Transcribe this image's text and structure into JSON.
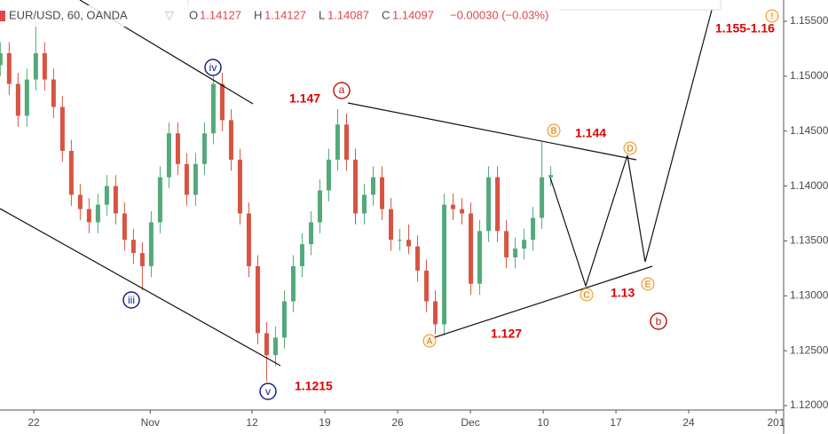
{
  "chart_data": {
    "type": "candlestick",
    "title": "EUR/USD, 60, OANDA",
    "header": {
      "o_label": "O",
      "o": "1.14127",
      "h_label": "H",
      "h": "1.14127",
      "l_label": "L",
      "l": "1.14087",
      "c_label": "C",
      "c": "1.14097",
      "change": "−0.00030 (−0.03%)"
    },
    "up_color": "#53a97a",
    "down_color": "#d75442",
    "xlim": [
      -2.32,
      51.52
    ],
    "ylim": [
      1.1196,
      1.15694
    ],
    "xticks": [
      {
        "value": 0,
        "label": "22"
      },
      {
        "value": 8,
        "label": "Nov"
      },
      {
        "value": 15,
        "label": "12"
      },
      {
        "value": 20,
        "label": "19"
      },
      {
        "value": 25,
        "label": "26"
      },
      {
        "value": 30,
        "label": "Dec"
      },
      {
        "value": 35,
        "label": "10"
      },
      {
        "value": 40,
        "label": "17"
      },
      {
        "value": 45,
        "label": "24"
      },
      {
        "value": 51,
        "label": "201"
      }
    ],
    "yticks": [
      {
        "value": 1.12,
        "label": "1.12000"
      },
      {
        "value": 1.125,
        "label": "1.12500"
      },
      {
        "value": 1.13,
        "label": "1.13000"
      },
      {
        "value": 1.135,
        "label": "1.13500"
      },
      {
        "value": 1.14,
        "label": "1.14000"
      },
      {
        "value": 1.145,
        "label": "1.14500"
      },
      {
        "value": 1.15,
        "label": "1.15000"
      },
      {
        "value": 1.155,
        "label": "1.15500"
      }
    ],
    "x": [
      -2.3,
      -1.69,
      -1.08,
      -0.47,
      0.14,
      0.75,
      1.36,
      1.97,
      2.58,
      3.19,
      3.8,
      4.41,
      5.02,
      5.63,
      6.24,
      6.85,
      7.46,
      8.07,
      8.68,
      9.29,
      9.9,
      10.51,
      11.12,
      11.73,
      12.34,
      12.95,
      13.56,
      14.17,
      14.78,
      15.39,
      16,
      16.61,
      17.22,
      17.83,
      18.44,
      19.05,
      19.66,
      20.27,
      20.88,
      21.49,
      22.1,
      22.71,
      23.32,
      23.93,
      24.54,
      25.15,
      25.76,
      26.37,
      26.98,
      27.59,
      28.2,
      28.81,
      29.42,
      30.03,
      30.64,
      31.25,
      31.86,
      32.47,
      33.08,
      33.69,
      34.3,
      34.91,
      35.52
    ],
    "ohlc": [
      [
        1.151,
        1.1531,
        1.15,
        1.1521
      ],
      [
        1.1521,
        1.1531,
        1.1483,
        1.1493
      ],
      [
        1.1493,
        1.1503,
        1.1454,
        1.1464
      ],
      [
        1.1464,
        1.1507,
        1.1454,
        1.1497
      ],
      [
        1.1497,
        1.155,
        1.1487,
        1.1521
      ],
      [
        1.1521,
        1.1531,
        1.1487,
        1.1497
      ],
      [
        1.1497,
        1.1507,
        1.1462,
        1.1472
      ],
      [
        1.1472,
        1.1482,
        1.1422,
        1.1432
      ],
      [
        1.1432,
        1.1442,
        1.1382,
        1.1392
      ],
      [
        1.1392,
        1.1402,
        1.1369,
        1.1379
      ],
      [
        1.1379,
        1.1389,
        1.1357,
        1.1367
      ],
      [
        1.1367,
        1.1393,
        1.1357,
        1.1383
      ],
      [
        1.1383,
        1.141,
        1.1373,
        1.14
      ],
      [
        1.14,
        1.141,
        1.1365,
        1.1375
      ],
      [
        1.1375,
        1.1385,
        1.1341,
        1.1351
      ],
      [
        1.1351,
        1.1361,
        1.1329,
        1.1339
      ],
      [
        1.1339,
        1.1349,
        1.1305,
        1.1327
      ],
      [
        1.1327,
        1.1377,
        1.1317,
        1.1367
      ],
      [
        1.1367,
        1.1418,
        1.1357,
        1.1408
      ],
      [
        1.1408,
        1.1458,
        1.1398,
        1.1448
      ],
      [
        1.1448,
        1.1458,
        1.141,
        1.142
      ],
      [
        1.142,
        1.143,
        1.1382,
        1.1392
      ],
      [
        1.1392,
        1.143,
        1.1382,
        1.142
      ],
      [
        1.142,
        1.1458,
        1.141,
        1.1448
      ],
      [
        1.1448,
        1.15,
        1.1438,
        1.1493
      ],
      [
        1.1493,
        1.1503,
        1.145,
        1.146
      ],
      [
        1.146,
        1.147,
        1.1414,
        1.1424
      ],
      [
        1.1424,
        1.1434,
        1.1365,
        1.1375
      ],
      [
        1.1375,
        1.1385,
        1.1317,
        1.1327
      ],
      [
        1.1327,
        1.1337,
        1.1256,
        1.1266
      ],
      [
        1.1266,
        1.1276,
        1.1222,
        1.1246
      ],
      [
        1.1246,
        1.1272,
        1.1236,
        1.1262
      ],
      [
        1.1262,
        1.1305,
        1.1252,
        1.1295
      ],
      [
        1.1295,
        1.1337,
        1.1285,
        1.1327
      ],
      [
        1.1327,
        1.1357,
        1.1317,
        1.1347
      ],
      [
        1.1347,
        1.1377,
        1.1337,
        1.1367
      ],
      [
        1.1367,
        1.1406,
        1.1357,
        1.1396
      ],
      [
        1.1396,
        1.1434,
        1.1386,
        1.1424
      ],
      [
        1.1424,
        1.147,
        1.1414,
        1.1456
      ],
      [
        1.1456,
        1.1466,
        1.1414,
        1.1424
      ],
      [
        1.1424,
        1.1434,
        1.1365,
        1.1375
      ],
      [
        1.1375,
        1.1402,
        1.1365,
        1.1392
      ],
      [
        1.1392,
        1.1418,
        1.1382,
        1.1408
      ],
      [
        1.1408,
        1.1418,
        1.1369,
        1.1379
      ],
      [
        1.1379,
        1.1389,
        1.1341,
        1.1351
      ],
      [
        1.1351,
        1.1361,
        1.1341,
        1.1351
      ],
      [
        1.1351,
        1.1365,
        1.1338,
        1.1345
      ],
      [
        1.1345,
        1.1355,
        1.1313,
        1.1323
      ],
      [
        1.1323,
        1.1333,
        1.1285,
        1.1295
      ],
      [
        1.1295,
        1.1305,
        1.1265,
        1.1274
      ],
      [
        1.1274,
        1.1393,
        1.1264,
        1.1383
      ],
      [
        1.1383,
        1.1393,
        1.1369,
        1.1379
      ],
      [
        1.1379,
        1.1389,
        1.1365,
        1.1375
      ],
      [
        1.1375,
        1.1385,
        1.1301,
        1.1311
      ],
      [
        1.1311,
        1.1369,
        1.1301,
        1.1359
      ],
      [
        1.1359,
        1.1418,
        1.1349,
        1.1408
      ],
      [
        1.1408,
        1.1418,
        1.1349,
        1.1359
      ],
      [
        1.1359,
        1.1369,
        1.1325,
        1.1335
      ],
      [
        1.1335,
        1.1353,
        1.1325,
        1.1343
      ],
      [
        1.1343,
        1.1361,
        1.1333,
        1.1351
      ],
      [
        1.1351,
        1.1381,
        1.1341,
        1.1371
      ],
      [
        1.1371,
        1.144,
        1.1361,
        1.1408
      ],
      [
        1.1408,
        1.1418,
        1.14,
        1.141
      ]
    ],
    "price_labels": [
      "1.147",
      "1.144",
      "1.155-1.16",
      "1.13",
      "1.127",
      "1.1215"
    ],
    "wave_labels": [
      "iii",
      "iv",
      "v",
      "a",
      "b",
      "A",
      "B",
      "C",
      "D",
      "E",
      "!"
    ]
  }
}
